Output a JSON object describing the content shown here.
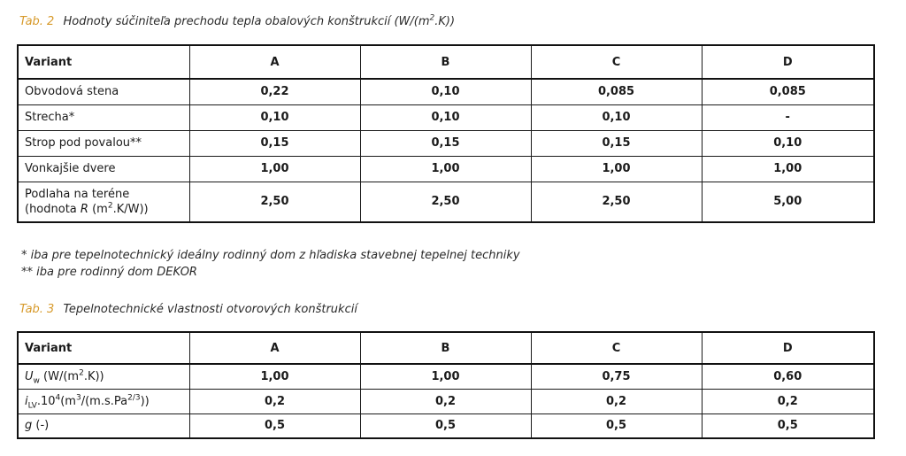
{
  "tab2": {
    "prefix": "Tab. 2",
    "title_a": "Hodnoty súčiniteľa prechodu tepla obalových konštrukcií (W/(m",
    "title_sup": "2",
    "title_b": ".K))",
    "headers": [
      "Variant",
      "A",
      "B",
      "C",
      "D"
    ],
    "rows": [
      {
        "label": "Obvodová stena",
        "values": [
          "0,22",
          "0,10",
          "0,085",
          "0,085"
        ]
      },
      {
        "label": "Strecha*",
        "values": [
          "0,10",
          "0,10",
          "0,10",
          "-"
        ]
      },
      {
        "label": "Strop pod povalou**",
        "values": [
          "0,15",
          "0,15",
          "0,15",
          "0,10"
        ]
      },
      {
        "label": "Vonkajšie dvere",
        "values": [
          "1,00",
          "1,00",
          "1,00",
          "1,00"
        ]
      },
      {
        "label_line1": "Podlaha na teréne",
        "label_line2_a": "(hodnota ",
        "label_line2_r": "R",
        "label_line2_b": " (m",
        "label_line2_sup": "2",
        "label_line2_c": ".K/W))",
        "values": [
          "2,50",
          "2,50",
          "2,50",
          "5,00"
        ]
      }
    ]
  },
  "notes": [
    "* iba pre tepelnotechnický ideálny rodinný dom z hľadiska stavebnej tepelnej techniky",
    "** iba pre rodinný dom DEKOR"
  ],
  "tab3": {
    "prefix": "Tab. 3",
    "title": "Tepelnotechnické vlastnosti otvorových konštrukcií",
    "headers": [
      "Variant",
      "A",
      "B",
      "C",
      "D"
    ],
    "rows": [
      {
        "sym": "U",
        "sub": "w",
        "unit_a": " (W/(m",
        "unit_sup": "2",
        "unit_b": ".K))",
        "values": [
          "1,00",
          "1,00",
          "0,75",
          "0,60"
        ]
      },
      {
        "sym": "i",
        "sub": "LV",
        "unit_a": ".10",
        "unit_sup": "4",
        "unit_b": "(m",
        "unit_sup2": "3",
        "unit_c": "/(m.s.Pa",
        "unit_sup3": "2/3",
        "unit_d": "))",
        "values": [
          "0,2",
          "0,2",
          "0,2",
          "0,2"
        ]
      },
      {
        "sym": "g",
        "unit_a": " (-)",
        "values": [
          "0,5",
          "0,5",
          "0,5",
          "0,5"
        ]
      }
    ]
  }
}
